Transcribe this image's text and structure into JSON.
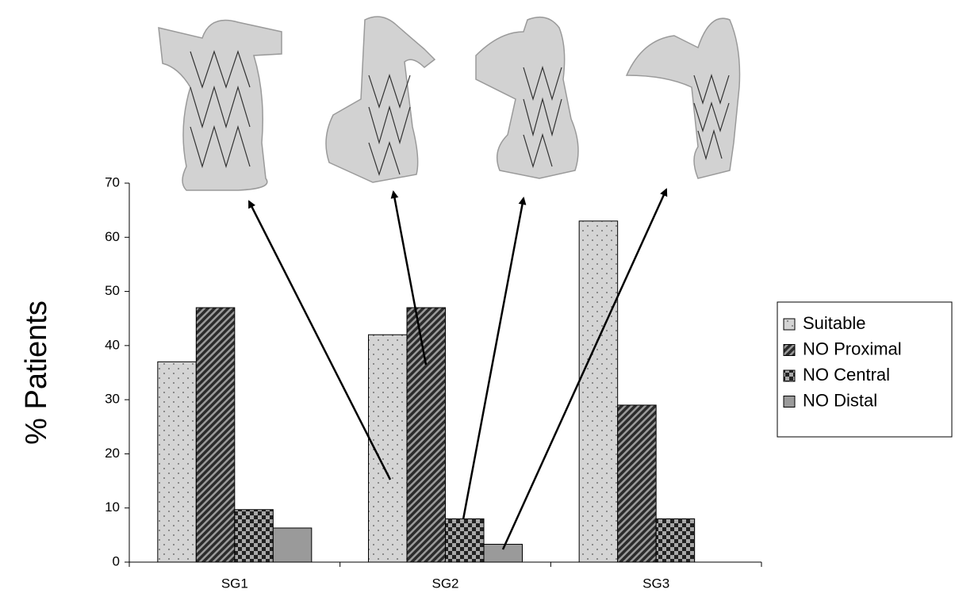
{
  "chart_data": {
    "type": "bar",
    "y_label": "% Patients",
    "categories": [
      "SG1",
      "SG2",
      "SG3"
    ],
    "series": [
      {
        "name": "Suitable",
        "color": "#d4d4d4",
        "pattern": "dots",
        "values": [
          37,
          42,
          63
        ]
      },
      {
        "name": "NO Proximal",
        "color": "#6e6e6e",
        "pattern": "stripes",
        "values": [
          47,
          47,
          29
        ]
      },
      {
        "name": "NO Central",
        "color": "#555555",
        "pattern": "checker",
        "values": [
          9.7,
          8,
          8
        ]
      },
      {
        "name": "NO Distal",
        "color": "#9a9a9a",
        "pattern": "solid",
        "values": [
          6.3,
          3.3,
          0
        ]
      }
    ],
    "ylim": [
      0,
      70
    ],
    "yticks": [
      0,
      10,
      20,
      30,
      40,
      50,
      60,
      70
    ],
    "legend": "right"
  }
}
